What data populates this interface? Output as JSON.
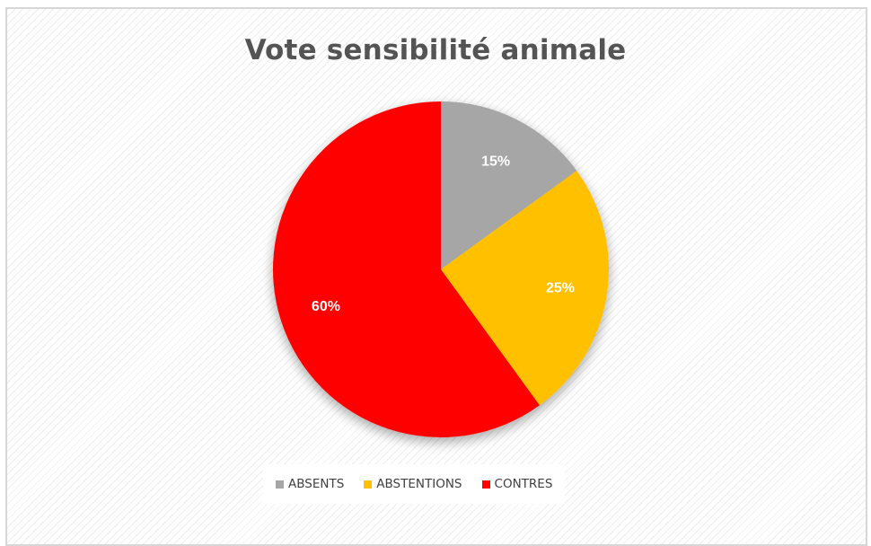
{
  "chart_data": {
    "type": "pie",
    "title": "Vote sensibilité animale",
    "slices": [
      {
        "label": "ABSENTS",
        "value": 15,
        "display": "15%",
        "color": "#a6a6a6"
      },
      {
        "label": "ABSTENTIONS",
        "value": 25,
        "display": "25%",
        "color": "#ffc000"
      },
      {
        "label": "CONTRES",
        "value": 60,
        "display": "60%",
        "color": "#ff0000"
      }
    ],
    "legend_position": "bottom"
  }
}
